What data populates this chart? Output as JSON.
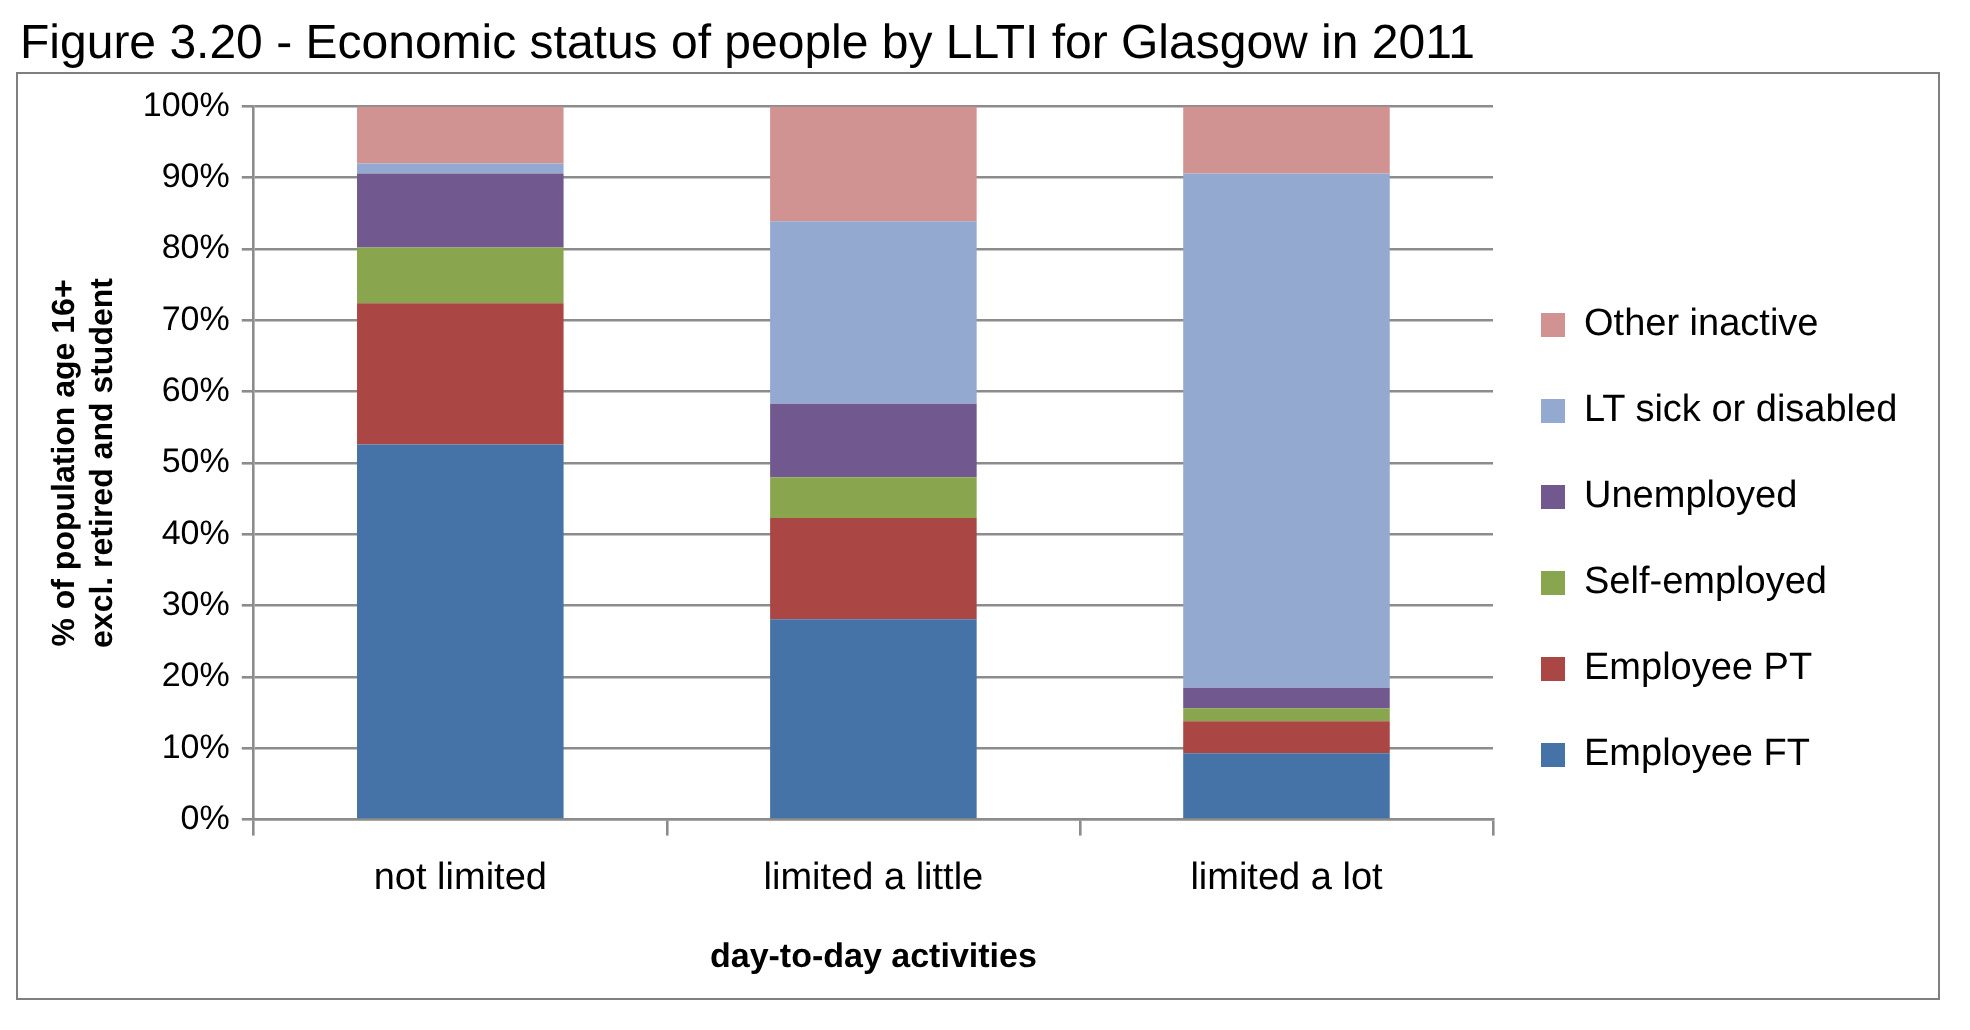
{
  "chart_data": {
    "type": "bar",
    "stacked": true,
    "title": "Figure 3.20 - Economic status of people by LLTI for Glasgow in 2011",
    "xlabel": "day-to-day activities",
    "ylabel": "% of population age 16+ excl. retired and student",
    "categories": [
      "not limited",
      "limited a little",
      "limited a lot"
    ],
    "series": [
      {
        "name": "Employee FT",
        "color": "#4572a7",
        "values": [
          52.6,
          28.1,
          9.3
        ]
      },
      {
        "name": "Employee PT",
        "color": "#aa4643",
        "values": [
          19.8,
          14.2,
          4.5
        ]
      },
      {
        "name": "Self-employed",
        "color": "#89a54e",
        "values": [
          7.8,
          5.7,
          1.8
        ]
      },
      {
        "name": "Unemployed",
        "color": "#71588f",
        "values": [
          10.4,
          10.3,
          2.9
        ]
      },
      {
        "name": "LT sick or disabled",
        "color": "#93a9cf",
        "values": [
          1.4,
          25.6,
          72.1
        ]
      },
      {
        "name": "Other inactive",
        "color": "#d19392",
        "values": [
          8.0,
          16.1,
          9.4
        ]
      }
    ],
    "ylim": [
      0,
      100
    ],
    "yticks": [
      {
        "value": 0,
        "label": "0%"
      },
      {
        "value": 10,
        "label": "10%"
      },
      {
        "value": 20,
        "label": "20%"
      },
      {
        "value": 30,
        "label": "30%"
      },
      {
        "value": 40,
        "label": "40%"
      },
      {
        "value": 50,
        "label": "50%"
      },
      {
        "value": 60,
        "label": "60%"
      },
      {
        "value": 70,
        "label": "70%"
      },
      {
        "value": 80,
        "label": "80%"
      },
      {
        "value": 90,
        "label": "90%"
      },
      {
        "value": 100,
        "label": "100%"
      }
    ],
    "grid": "y",
    "legend": "right"
  }
}
